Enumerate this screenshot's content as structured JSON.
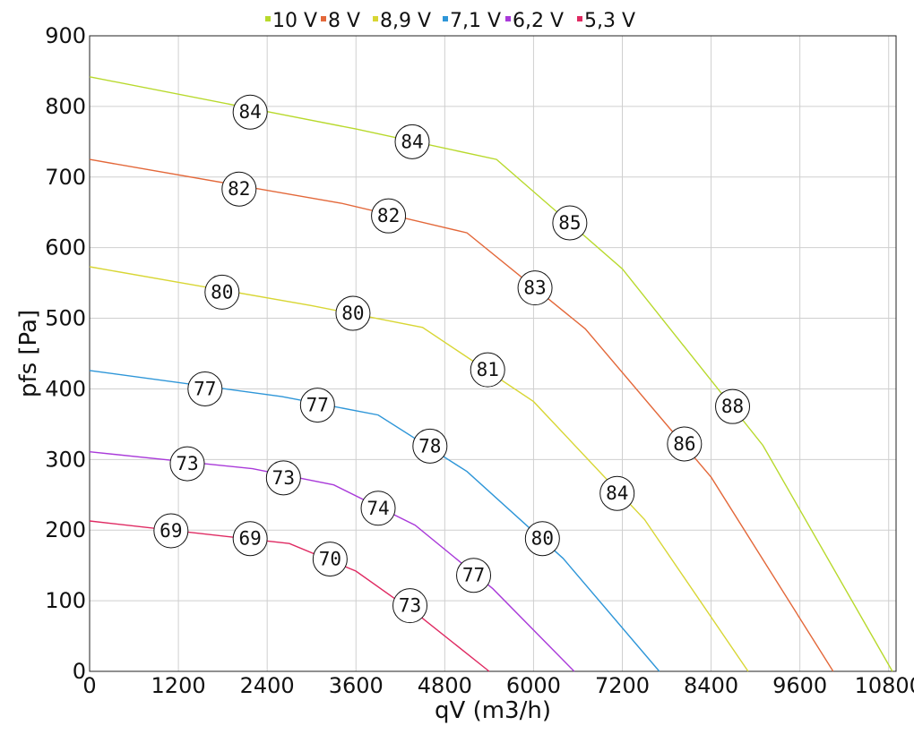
{
  "chart_data": {
    "type": "line",
    "xlabel": "qV (m3/h)",
    "ylabel": "pfs [Pa]",
    "xlim": [
      0,
      10900
    ],
    "ylim": [
      0,
      900
    ],
    "xticks": [
      0,
      1200,
      2400,
      3600,
      4800,
      6000,
      7200,
      8400,
      9600,
      10800
    ],
    "yticks": [
      0,
      100,
      200,
      300,
      400,
      500,
      600,
      700,
      800,
      900
    ],
    "x_tick_labels": [
      "0",
      "1200",
      "2400",
      "3600",
      "4800",
      "6000",
      "7200",
      "8400",
      "9600",
      "10800"
    ],
    "y_tick_labels": [
      "0",
      "100",
      "200",
      "300",
      "400",
      "500",
      "600",
      "700",
      "800",
      "900"
    ],
    "grid": true,
    "legend_position": "top-center",
    "series": [
      {
        "name": "10 V",
        "color": "#b8d92c",
        "points": [
          [
            0,
            842
          ],
          [
            3600,
            768
          ],
          [
            5500,
            725
          ],
          [
            7200,
            570
          ],
          [
            9100,
            320
          ],
          [
            10850,
            0
          ]
        ],
        "labels": [
          {
            "x": 2170,
            "y": 792,
            "text": "84"
          },
          {
            "x": 4360,
            "y": 750,
            "text": "84"
          },
          {
            "x": 6490,
            "y": 635,
            "text": "85"
          },
          {
            "x": 8690,
            "y": 375,
            "text": "88"
          }
        ]
      },
      {
        "name": "8 V",
        "color": "#e3683a",
        "points": [
          [
            0,
            725
          ],
          [
            3400,
            663
          ],
          [
            5100,
            621
          ],
          [
            6700,
            485
          ],
          [
            8400,
            275
          ],
          [
            10050,
            0
          ]
        ],
        "labels": [
          {
            "x": 2020,
            "y": 683,
            "text": "82"
          },
          {
            "x": 4040,
            "y": 645,
            "text": "82"
          },
          {
            "x": 6020,
            "y": 543,
            "text": "83"
          },
          {
            "x": 8040,
            "y": 322,
            "text": "86"
          }
        ]
      },
      {
        "name": "8,9 V",
        "color": "#d8d634",
        "points": [
          [
            0,
            573
          ],
          [
            3000,
            518
          ],
          [
            4500,
            487
          ],
          [
            6000,
            382
          ],
          [
            7500,
            215
          ],
          [
            8900,
            0
          ]
        ],
        "labels": [
          {
            "x": 1790,
            "y": 537,
            "text": "80"
          },
          {
            "x": 3560,
            "y": 507,
            "text": "80"
          },
          {
            "x": 5380,
            "y": 427,
            "text": "81"
          },
          {
            "x": 7130,
            "y": 252,
            "text": "84"
          }
        ]
      },
      {
        "name": "7,1 V",
        "color": "#2e96d8",
        "points": [
          [
            0,
            426
          ],
          [
            2600,
            389
          ],
          [
            3900,
            363
          ],
          [
            5100,
            283
          ],
          [
            6400,
            160
          ],
          [
            7700,
            0
          ]
        ],
        "labels": [
          {
            "x": 1560,
            "y": 400,
            "text": "77"
          },
          {
            "x": 3080,
            "y": 377,
            "text": "77"
          },
          {
            "x": 4600,
            "y": 319,
            "text": "78"
          },
          {
            "x": 6120,
            "y": 188,
            "text": "80"
          }
        ]
      },
      {
        "name": "6,2 V",
        "color": "#a93ad9",
        "points": [
          [
            0,
            311
          ],
          [
            2200,
            287
          ],
          [
            3300,
            264
          ],
          [
            4400,
            207
          ],
          [
            5450,
            117
          ],
          [
            6550,
            0
          ]
        ],
        "labels": [
          {
            "x": 1320,
            "y": 294,
            "text": "73"
          },
          {
            "x": 2620,
            "y": 274,
            "text": "73"
          },
          {
            "x": 3900,
            "y": 231,
            "text": "74"
          },
          {
            "x": 5190,
            "y": 136,
            "text": "77"
          }
        ]
      },
      {
        "name": "5,3 V",
        "color": "#df2a62",
        "points": [
          [
            0,
            213
          ],
          [
            2700,
            181
          ],
          [
            3600,
            142
          ],
          [
            4500,
            75
          ],
          [
            5400,
            0
          ]
        ],
        "labels": [
          {
            "x": 1100,
            "y": 199,
            "text": "69"
          },
          {
            "x": 2170,
            "y": 188,
            "text": "69"
          },
          {
            "x": 3250,
            "y": 159,
            "text": "70"
          },
          {
            "x": 4330,
            "y": 93,
            "text": "73"
          }
        ]
      }
    ]
  }
}
